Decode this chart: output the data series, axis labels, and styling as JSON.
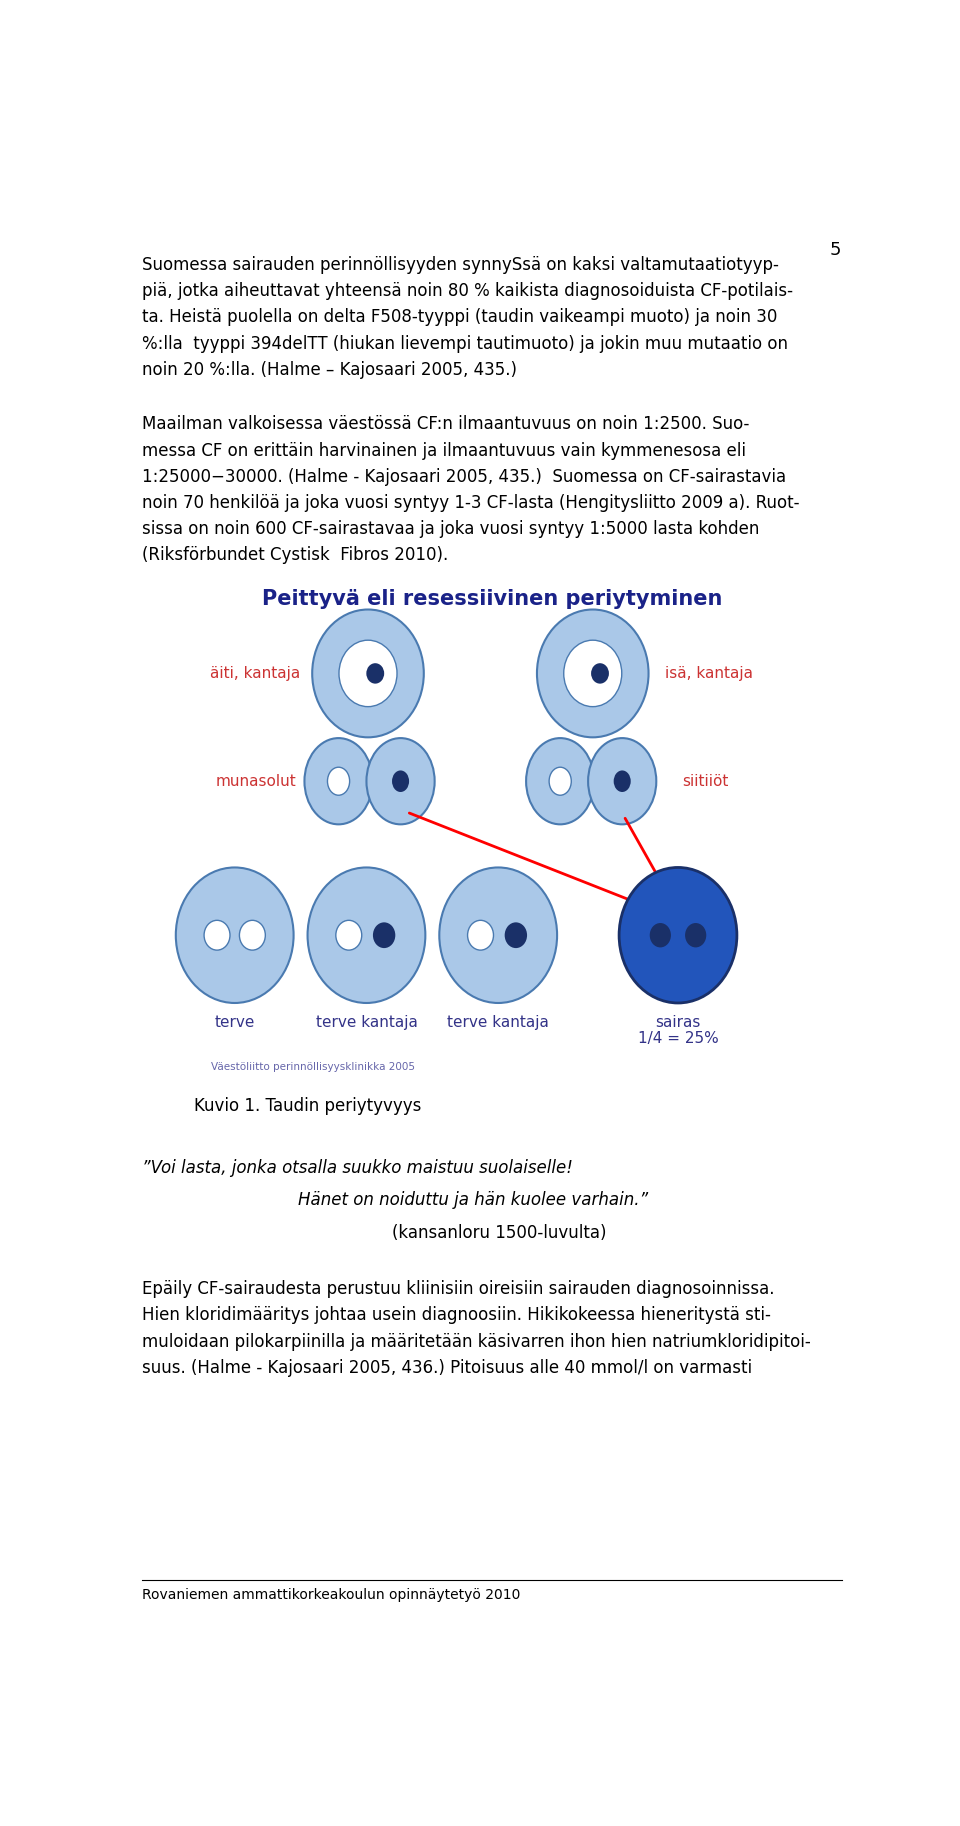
{
  "page_number": "5",
  "para1_line1": "Suomessa sairauden perinnöllisyyden synnySsä on kaksi valtamutaatiotyyp-",
  "para1_line2": "piä, jotka aiheuttavat yhteensä noin 80 % kaikista diagnosoiduista CF-potilais-",
  "para1_line3": "ta. Heistä puolella on delta F508-tyyppi (taudin vaikeampi muoto) ja noin 30",
  "para1_line4": "%:lla  tyyppi 394delTT (hiukan lievempi tautimuoto) ja jokin muu mutaatio on",
  "para1_line5": "noin 20 %:lla. (Halme – Kajosaari 2005, 435.)",
  "para2_line1": "Maailman valkoisessa väestössä CF:n ilmaantuvuus on noin 1:2500. Suo-",
  "para2_line2": "messa CF on erittäin harvinainen ja ilmaantuvuus vain kymmenesosa eli",
  "para2_line3": "1:25000−30000. (Halme - Kajosaari 2005, 435.)  Suomessa on CF-sairastavia",
  "para2_line4": "noin 70 henkilöä ja joka vuosi syntyy 1-3 CF-lasta (Hengitysliitto 2009 a). Ruot-",
  "para2_line5": "sissa on noin 600 CF-sairastavaa ja joka vuosi syntyy 1:5000 lasta kohden",
  "para2_line6": "(Riksförbundet Cystisk  Fibros 2010).",
  "diagram_title": "Peittyvä eli resessiivinen periytyminen",
  "label_aiti": "äiti, kantaja",
  "label_isa": "isä, kantaja",
  "label_munasolut": "munasolut",
  "label_siitiot": "siitiiöt",
  "label_terve": "terve",
  "label_terve_kantaja1": "terve kantaja",
  "label_terve_kantaja2": "terve kantaja",
  "label_sairas_line1": "sairas",
  "label_sairas_line2": "1/4 = 25%",
  "watermark": "Väestöliitto perinnöllisyysklinikka 2005",
  "caption": "Kuvio 1. Taudin periytyvyys",
  "quote1": "”Voi lasta, jonka otsalla suukko maistuu suolaiselle!",
  "quote2": "Hänet on noiduttu ja hän kuolee varhain.”",
  "quote3": "(kansanloru 1500-luvulta)",
  "para3_line1": "Epäily CF-sairaudesta perustuu kliinisiin oireisiin sairauden diagnosoinnissa.",
  "para3_line2": "Hien kloridimääritys johtaa usein diagnoosiin. Hikikokeessa hieneritystä sti-",
  "para3_line3": "muloidaan pilokarpiinilla ja määritetään käsivarren ihon hien natriumkloridipitoi-",
  "para3_line4": "suus. (Halme - Kajosaari 2005, 436.) Pitoisuus alle 40 mmol/l on varmasti",
  "footer": "Rovaniemen ammattikorkeakoulun opinnäytetyö 2010",
  "color_light_blue": "#aac8e8",
  "color_mid_blue": "#4a7ab0",
  "color_dark_blue": "#1a3068",
  "color_deep_blue": "#2255bb",
  "color_title_blue": "#1a2288",
  "color_label_blue": "#333388",
  "color_red_label": "#cc3333",
  "color_text": "#111111",
  "background": "#ffffff"
}
